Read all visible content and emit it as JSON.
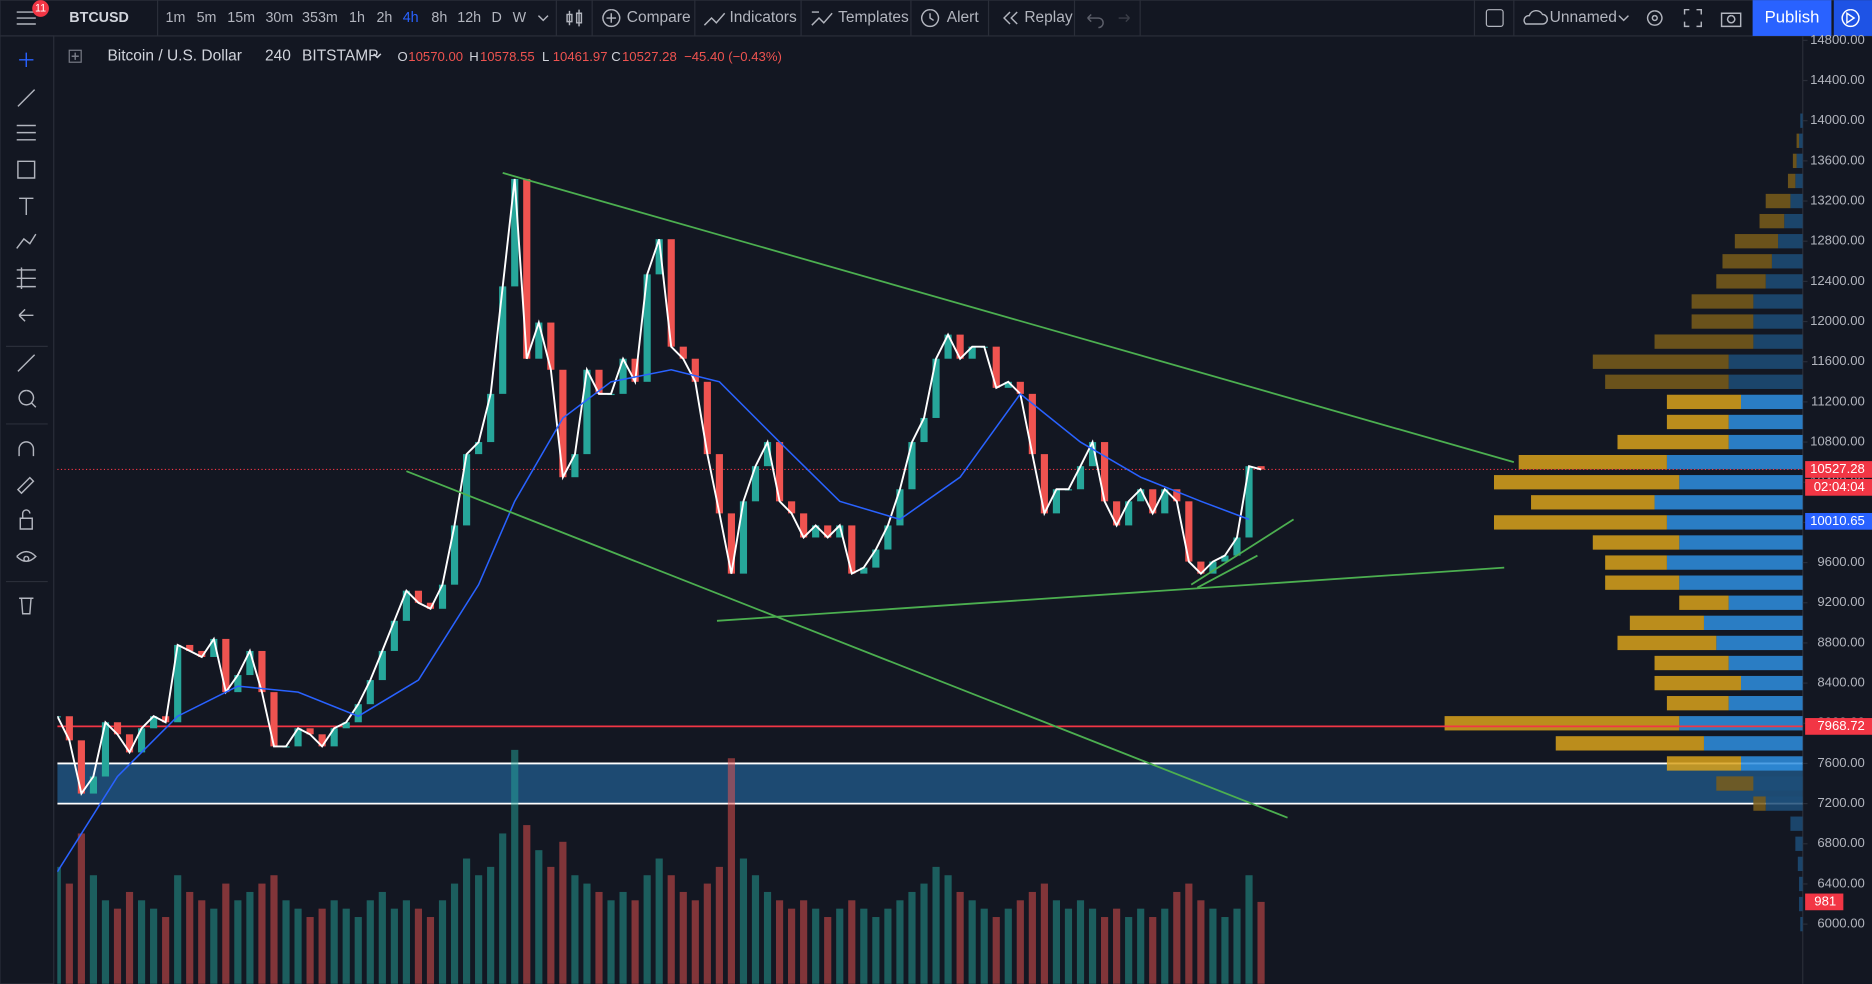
{
  "toolbar": {
    "badge": "11",
    "symbol": "BTCUSD",
    "intervals": [
      "1m",
      "5m",
      "15m",
      "30m",
      "353m",
      "1h",
      "2h",
      "4h",
      "8h",
      "12h",
      "D",
      "W"
    ],
    "active_interval": 7,
    "buttons": [
      "Compare",
      "Indicators",
      "Templates",
      "Alert",
      "Replay"
    ],
    "layout_name": "Unnamed",
    "publish": "Publish"
  },
  "legend": {
    "name": "Bitcoin / U.S. Dollar",
    "interval": "240",
    "exchange": "BITSTAMP",
    "ohlc": [
      {
        "key": "O",
        "value": "10570.00"
      },
      {
        "key": "H",
        "value": "10578.55"
      },
      {
        "key": "L",
        "value": "10461.97"
      },
      {
        "key": "C",
        "value": "10527.28"
      }
    ],
    "change": "−45.40 (−0.43%)"
  },
  "chart_data": {
    "type": "candlestick",
    "x": [
      0,
      1,
      2,
      3,
      4,
      5,
      6,
      7,
      8,
      9,
      10,
      11,
      12,
      13,
      14,
      15,
      16,
      17,
      18,
      19,
      20,
      21,
      22,
      23,
      24,
      25,
      26,
      27,
      28,
      29,
      30,
      31,
      32,
      33,
      34,
      35,
      36,
      37,
      38,
      39,
      40,
      41,
      42,
      43,
      44,
      45,
      46,
      47,
      48,
      49,
      50,
      51,
      52,
      53,
      54,
      55,
      56,
      57,
      58,
      59,
      60,
      61,
      62,
      63,
      64,
      65,
      66,
      67,
      68,
      69,
      70,
      71,
      72,
      73,
      74,
      75,
      76,
      77,
      78,
      79,
      80,
      81,
      82,
      83,
      84,
      85,
      86,
      87,
      88,
      89,
      90,
      91,
      92,
      93,
      94,
      95,
      96,
      97,
      98,
      99,
      100
    ],
    "series": [
      {
        "color": "#ffffff",
        "up_color": "#26a69a",
        "down_color": "#ef5350",
        "values": [
          8070,
          7830,
          7300,
          7470,
          8010,
          7890,
          7710,
          7950,
          8070,
          8010,
          8780,
          8720,
          8660,
          8840,
          8310,
          8480,
          8720,
          8310,
          7770,
          7770,
          7950,
          7890,
          7770,
          7950,
          8010,
          8190,
          8430,
          8720,
          9020,
          9320,
          9200,
          9140,
          9380,
          9970,
          10680,
          10800,
          11280,
          12350,
          13420,
          11630,
          11990,
          11520,
          10450,
          10680,
          11520,
          11280,
          11280,
          11630,
          11400,
          12470,
          12820,
          11750,
          11630,
          11400,
          10680,
          10090,
          9490,
          10210,
          10560,
          10800,
          10210,
          10090,
          9850,
          9970,
          9850,
          9970,
          9490,
          9550,
          9730,
          9970,
          10330,
          10800,
          11040,
          11630,
          11870,
          11630,
          11750,
          11750,
          11340,
          11400,
          11280,
          10680,
          10090,
          10330,
          10330,
          10560,
          10800,
          10210,
          9970,
          10210,
          10330,
          10090,
          10330,
          10210,
          9610,
          9490,
          9610,
          9670,
          9850,
          10560,
          10527.28
        ]
      },
      {
        "color": "#2962ff",
        "x": [
          0,
          5,
          10,
          15,
          20,
          25,
          30,
          35,
          38,
          42,
          46,
          51,
          55,
          60,
          65,
          70,
          75,
          80,
          85,
          90,
          95,
          99
        ],
        "values": [
          6520,
          7470,
          8070,
          8370,
          8310,
          8070,
          8430,
          9380,
          10210,
          11040,
          11400,
          11520,
          11400,
          10800,
          10210,
          10030,
          10450,
          11280,
          10800,
          10450,
          10210,
          10030
        ]
      }
    ],
    "xlim": [
      0,
      145
    ],
    "ylim": [
      5405,
      14844
    ],
    "grid": false,
    "yticks": [
      {
        "value": 6000,
        "label": "6000.00"
      },
      {
        "value": 6400,
        "label": "6400.00"
      },
      {
        "value": 6800,
        "label": "6800.00"
      },
      {
        "value": 7200,
        "label": "7200.00"
      },
      {
        "value": 7600,
        "label": "7600.00"
      },
      {
        "value": 8000,
        "label": "8000.00"
      },
      {
        "value": 8400,
        "label": "8400.00"
      },
      {
        "value": 8800,
        "label": "8800.00"
      },
      {
        "value": 9200,
        "label": "9200.00"
      },
      {
        "value": 9600,
        "label": "9600.00"
      },
      {
        "value": 10000,
        "label": "10000.00"
      },
      {
        "value": 10400,
        "label": "10400.00"
      },
      {
        "value": 10800,
        "label": "10800.00"
      },
      {
        "value": 11200,
        "label": "11200.00"
      },
      {
        "value": 11600,
        "label": "11600.00"
      },
      {
        "value": 12000,
        "label": "12000.00"
      },
      {
        "value": 12400,
        "label": "12400.00"
      },
      {
        "value": 12800,
        "label": "12800.00"
      },
      {
        "value": 13200,
        "label": "13200.00"
      },
      {
        "value": 13600,
        "label": "13600.00"
      },
      {
        "value": 14000,
        "label": "14000.00"
      },
      {
        "value": 14400,
        "label": "14400.00"
      },
      {
        "value": 14800,
        "label": "14800.00"
      }
    ],
    "price_labels": [
      {
        "value": 10527.28,
        "label": "10527.28",
        "color": "#f23645",
        "line": "dotted"
      },
      {
        "value": 10010.65,
        "label": "10010.65",
        "color": "#2962ff"
      },
      {
        "value": 7968.72,
        "label": "7968.72",
        "color": "#f23645",
        "line": "solid"
      }
    ],
    "countdown": "02:04:04",
    "zone": {
      "from": 7200,
      "to": 7600,
      "color": "#1d4a72",
      "border": "#ffffff"
    },
    "trendline_color": "#4caf50",
    "trendlines": [
      {
        "x": [
          37,
          121
        ],
        "y": [
          13480,
          10600
        ]
      },
      {
        "x": [
          29,
          102.2
        ],
        "y": [
          10510,
          7060
        ]
      },
      {
        "x": [
          54.8,
          120.2
        ],
        "y": [
          9020,
          9550
        ]
      },
      {
        "x": [
          94.2,
          102.7
        ],
        "y": [
          9380,
          10030
        ]
      },
      {
        "x": [
          94.7,
          99.7
        ],
        "y": [
          9350,
          9670
        ]
      }
    ],
    "volume": {
      "ylim": [
        0,
        3000
      ],
      "values": [
        1400,
        1200,
        1800,
        1300,
        1000,
        900,
        1100,
        1000,
        900,
        800,
        1300,
        1100,
        1000,
        900,
        1200,
        1000,
        1100,
        1200,
        1300,
        1000,
        900,
        800,
        900,
        1000,
        900,
        800,
        1000,
        1100,
        900,
        1000,
        900,
        800,
        1000,
        1200,
        1500,
        1300,
        1400,
        1800,
        2800,
        1900,
        1600,
        1400,
        1700,
        1300,
        1200,
        1100,
        1000,
        1100,
        1000,
        1300,
        1500,
        1300,
        1100,
        1000,
        1200,
        1400,
        2700,
        1500,
        1300,
        1100,
        1000,
        900,
        1000,
        900,
        800,
        900,
        1000,
        900,
        800,
        900,
        1000,
        1100,
        1200,
        1400,
        1300,
        1100,
        1000,
        900,
        800,
        900,
        1000,
        1100,
        1200,
        1000,
        900,
        1000,
        900,
        800,
        900,
        800,
        900,
        800,
        900,
        1100,
        1200,
        1000,
        900,
        800,
        900,
        1300,
        981
      ]
    },
    "profile": {
      "value_area": [
        7600,
        11200
      ],
      "up_color": "#2f8fe0",
      "down_color": "#d9a21b",
      "dim_up_color": "#1d4e78",
      "dim_down_color": "#7a5d1a",
      "levels": [
        6000,
        6200,
        6400,
        6600,
        6800,
        7000,
        7200,
        7400,
        7600,
        7800,
        8000,
        8200,
        8400,
        8600,
        8800,
        9000,
        9200,
        9400,
        9600,
        9800,
        10000,
        10200,
        10400,
        10600,
        10800,
        11000,
        11200,
        11400,
        11600,
        11800,
        12000,
        12200,
        12400,
        12600,
        12800,
        13000,
        13200,
        13400,
        13600,
        13800,
        14000
      ],
      "up": [
        2,
        3,
        3,
        4,
        6,
        10,
        30,
        40,
        50,
        80,
        100,
        60,
        50,
        60,
        70,
        80,
        60,
        100,
        110,
        100,
        110,
        120,
        100,
        110,
        60,
        60,
        50,
        60,
        60,
        40,
        40,
        40,
        30,
        25,
        20,
        15,
        10,
        6,
        5,
        3,
        2
      ],
      "down": [
        0,
        0,
        0,
        0,
        0,
        0,
        10,
        30,
        60,
        120,
        190,
        50,
        70,
        60,
        80,
        60,
        40,
        60,
        50,
        70,
        140,
        100,
        150,
        120,
        90,
        50,
        60,
        100,
        110,
        80,
        50,
        50,
        40,
        40,
        35,
        20,
        20,
        6,
        3,
        2,
        0
      ]
    }
  }
}
